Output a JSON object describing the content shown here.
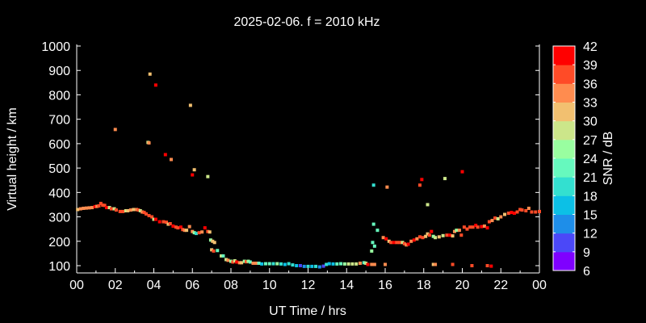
{
  "chart_data": {
    "type": "scatter",
    "title": "2025-02-06. f = 2010 kHz",
    "xlabel": "UT Time / hrs",
    "ylabel": "Virtual height / km",
    "xlim": [
      0,
      24
    ],
    "ylim": [
      70,
      1000
    ],
    "x_ticks": [
      "00",
      "02",
      "04",
      "06",
      "08",
      "10",
      "12",
      "14",
      "16",
      "18",
      "20",
      "22",
      "00"
    ],
    "y_ticks": [
      100,
      200,
      300,
      400,
      500,
      600,
      700,
      800,
      900,
      1000
    ],
    "grid": false,
    "colorbar": {
      "label": "SNR / dB",
      "ticks": [
        6,
        9,
        12,
        15,
        18,
        21,
        24,
        27,
        30,
        33,
        36,
        39,
        42
      ],
      "colors": [
        "#7f00ff",
        "#4b48f8",
        "#1e8ee9",
        "#0cc0e6",
        "#33e0d0",
        "#66f9be",
        "#99fea0",
        "#cce68a",
        "#f2c070",
        "#ff8c4f",
        "#ff4b27",
        "#ff0000"
      ]
    },
    "point_fields": [
      "hour",
      "virtual_height_km",
      "snr_db"
    ],
    "points": [
      [
        0.05,
        330,
        31
      ],
      [
        0.2,
        333,
        33
      ],
      [
        0.35,
        335,
        34
      ],
      [
        0.5,
        336,
        33
      ],
      [
        0.65,
        337,
        34
      ],
      [
        0.8,
        338,
        33
      ],
      [
        0.95,
        342,
        40
      ],
      [
        1.05,
        343,
        34
      ],
      [
        1.15,
        345,
        38
      ],
      [
        1.25,
        355,
        38
      ],
      [
        1.35,
        348,
        37
      ],
      [
        1.45,
        347,
        38
      ],
      [
        1.55,
        338,
        40
      ],
      [
        1.7,
        338,
        28
      ],
      [
        1.8,
        333,
        36
      ],
      [
        1.95,
        333,
        28
      ],
      [
        2.05,
        328,
        36
      ],
      [
        2.25,
        322,
        38
      ],
      [
        2.4,
        322,
        38
      ],
      [
        2.55,
        325,
        28
      ],
      [
        2.65,
        325,
        32
      ],
      [
        2.8,
        328,
        33
      ],
      [
        2.95,
        330,
        32
      ],
      [
        3.1,
        330,
        33
      ],
      [
        3.2,
        328,
        36
      ],
      [
        3.3,
        325,
        28
      ],
      [
        3.4,
        320,
        33
      ],
      [
        3.5,
        318,
        38
      ],
      [
        3.6,
        312,
        38
      ],
      [
        3.75,
        305,
        38
      ],
      [
        3.9,
        300,
        38
      ],
      [
        4.0,
        290,
        28
      ],
      [
        4.1,
        290,
        40
      ],
      [
        4.3,
        280,
        40
      ],
      [
        4.5,
        280,
        38
      ],
      [
        4.65,
        278,
        38
      ],
      [
        4.75,
        270,
        32
      ],
      [
        4.85,
        272,
        38
      ],
      [
        5.0,
        262,
        40
      ],
      [
        5.15,
        258,
        38
      ],
      [
        5.25,
        255,
        38
      ],
      [
        5.4,
        258,
        40
      ],
      [
        5.5,
        248,
        38
      ],
      [
        5.6,
        245,
        33
      ],
      [
        5.7,
        245,
        32
      ],
      [
        5.85,
        260,
        34
      ],
      [
        6.0,
        240,
        34
      ],
      [
        6.1,
        235,
        25
      ],
      [
        6.2,
        232,
        20
      ],
      [
        6.35,
        235,
        37
      ],
      [
        6.5,
        238,
        34
      ],
      [
        6.65,
        255,
        40
      ],
      [
        6.8,
        240,
        38
      ],
      [
        6.9,
        238,
        32
      ],
      [
        6.95,
        205,
        25
      ],
      [
        7.05,
        200,
        31
      ],
      [
        7.15,
        195,
        31
      ],
      [
        7.0,
        165,
        32
      ],
      [
        7.1,
        160,
        38
      ],
      [
        7.3,
        162,
        22
      ],
      [
        7.5,
        140,
        28
      ],
      [
        7.6,
        140,
        22
      ],
      [
        7.75,
        125,
        28
      ],
      [
        7.85,
        122,
        34
      ],
      [
        8.0,
        118,
        26
      ],
      [
        8.1,
        115,
        36
      ],
      [
        8.2,
        120,
        28
      ],
      [
        8.3,
        115,
        40
      ],
      [
        8.45,
        112,
        33
      ],
      [
        8.55,
        112,
        31
      ],
      [
        8.7,
        118,
        26
      ],
      [
        8.8,
        116,
        38
      ],
      [
        8.9,
        118,
        24
      ],
      [
        9.0,
        115,
        21
      ],
      [
        9.15,
        110,
        34
      ],
      [
        9.3,
        110,
        33
      ],
      [
        9.45,
        110,
        21
      ],
      [
        9.6,
        107,
        15
      ],
      [
        9.8,
        108,
        21
      ],
      [
        10.0,
        108,
        22
      ],
      [
        10.2,
        108,
        20
      ],
      [
        10.4,
        108,
        24
      ],
      [
        10.6,
        107,
        20
      ],
      [
        10.8,
        105,
        16
      ],
      [
        11.0,
        108,
        20
      ],
      [
        11.2,
        103,
        19
      ],
      [
        11.4,
        100,
        15
      ],
      [
        11.6,
        100,
        10
      ],
      [
        11.8,
        97,
        14
      ],
      [
        12.0,
        97,
        20
      ],
      [
        12.2,
        97,
        15
      ],
      [
        12.4,
        97,
        18
      ],
      [
        12.6,
        95,
        12
      ],
      [
        12.8,
        98,
        10
      ],
      [
        12.95,
        105,
        20
      ],
      [
        13.1,
        108,
        17
      ],
      [
        13.3,
        107,
        15
      ],
      [
        13.5,
        107,
        22
      ],
      [
        13.7,
        108,
        23
      ],
      [
        13.9,
        107,
        26
      ],
      [
        14.1,
        107,
        28
      ],
      [
        14.3,
        107,
        27
      ],
      [
        14.5,
        107,
        29
      ],
      [
        14.7,
        110,
        33
      ],
      [
        14.9,
        112,
        21
      ],
      [
        15.0,
        110,
        27
      ],
      [
        15.1,
        105,
        40
      ],
      [
        15.3,
        105,
        34
      ],
      [
        15.45,
        105,
        34
      ],
      [
        15.3,
        160,
        24
      ],
      [
        15.35,
        195,
        23
      ],
      [
        15.45,
        180,
        23
      ],
      [
        15.4,
        270,
        23
      ],
      [
        15.6,
        245,
        21
      ],
      [
        15.9,
        215,
        34
      ],
      [
        16.05,
        210,
        40
      ],
      [
        16.2,
        200,
        30
      ],
      [
        16.3,
        195,
        37
      ],
      [
        16.45,
        195,
        40
      ],
      [
        16.6,
        195,
        38
      ],
      [
        16.75,
        195,
        38
      ],
      [
        16.9,
        195,
        28
      ],
      [
        17.0,
        190,
        38
      ],
      [
        17.1,
        185,
        34
      ],
      [
        17.2,
        188,
        40
      ],
      [
        17.35,
        200,
        34
      ],
      [
        17.5,
        205,
        40
      ],
      [
        17.65,
        210,
        33
      ],
      [
        17.8,
        218,
        36
      ],
      [
        17.95,
        215,
        37
      ],
      [
        18.1,
        220,
        30
      ],
      [
        18.2,
        230,
        32
      ],
      [
        18.3,
        225,
        38
      ],
      [
        18.4,
        240,
        40
      ],
      [
        18.5,
        220,
        25
      ],
      [
        18.6,
        215,
        28
      ],
      [
        18.8,
        218,
        30
      ],
      [
        19.0,
        223,
        28
      ],
      [
        19.2,
        225,
        38
      ],
      [
        19.35,
        225,
        40
      ],
      [
        19.5,
        222,
        32
      ],
      [
        19.6,
        240,
        33
      ],
      [
        19.7,
        245,
        26
      ],
      [
        19.85,
        245,
        34
      ],
      [
        19.95,
        225,
        38
      ],
      [
        20.1,
        258,
        36
      ],
      [
        20.25,
        250,
        36
      ],
      [
        20.4,
        258,
        38
      ],
      [
        20.55,
        258,
        38
      ],
      [
        20.7,
        265,
        40
      ],
      [
        20.8,
        258,
        38
      ],
      [
        21.0,
        260,
        40
      ],
      [
        21.15,
        262,
        34
      ],
      [
        21.3,
        255,
        40
      ],
      [
        21.4,
        280,
        36
      ],
      [
        21.55,
        285,
        34
      ],
      [
        21.7,
        295,
        38
      ],
      [
        21.85,
        292,
        28
      ],
      [
        22.0,
        300,
        34
      ],
      [
        22.2,
        310,
        32
      ],
      [
        22.4,
        315,
        38
      ],
      [
        22.55,
        318,
        40
      ],
      [
        22.7,
        315,
        40
      ],
      [
        22.85,
        320,
        38
      ],
      [
        23.0,
        330,
        36
      ],
      [
        23.1,
        328,
        38
      ],
      [
        23.3,
        325,
        38
      ],
      [
        23.45,
        335,
        33
      ],
      [
        23.6,
        320,
        36
      ],
      [
        23.8,
        320,
        36
      ],
      [
        24.0,
        322,
        38
      ],
      [
        3.8,
        885,
        31
      ],
      [
        4.1,
        840,
        40
      ],
      [
        5.9,
        757,
        32
      ],
      [
        2.0,
        658,
        33
      ],
      [
        3.7,
        605,
        28
      ],
      [
        3.75,
        603,
        34
      ],
      [
        4.6,
        555,
        40
      ],
      [
        4.9,
        535,
        34
      ],
      [
        6.1,
        493,
        31
      ],
      [
        6.0,
        472,
        40
      ],
      [
        6.8,
        465,
        27
      ],
      [
        15.4,
        430,
        20
      ],
      [
        16.1,
        422,
        34
      ],
      [
        17.8,
        430,
        37
      ],
      [
        17.9,
        453,
        40
      ],
      [
        18.2,
        350,
        28
      ],
      [
        19.1,
        457,
        28
      ],
      [
        20.0,
        485,
        40
      ],
      [
        16.0,
        105,
        34
      ],
      [
        18.5,
        105,
        30
      ],
      [
        18.6,
        105,
        34
      ],
      [
        19.5,
        105,
        38
      ],
      [
        20.5,
        100,
        36
      ],
      [
        21.3,
        100,
        38
      ],
      [
        21.5,
        98,
        40
      ]
    ]
  }
}
